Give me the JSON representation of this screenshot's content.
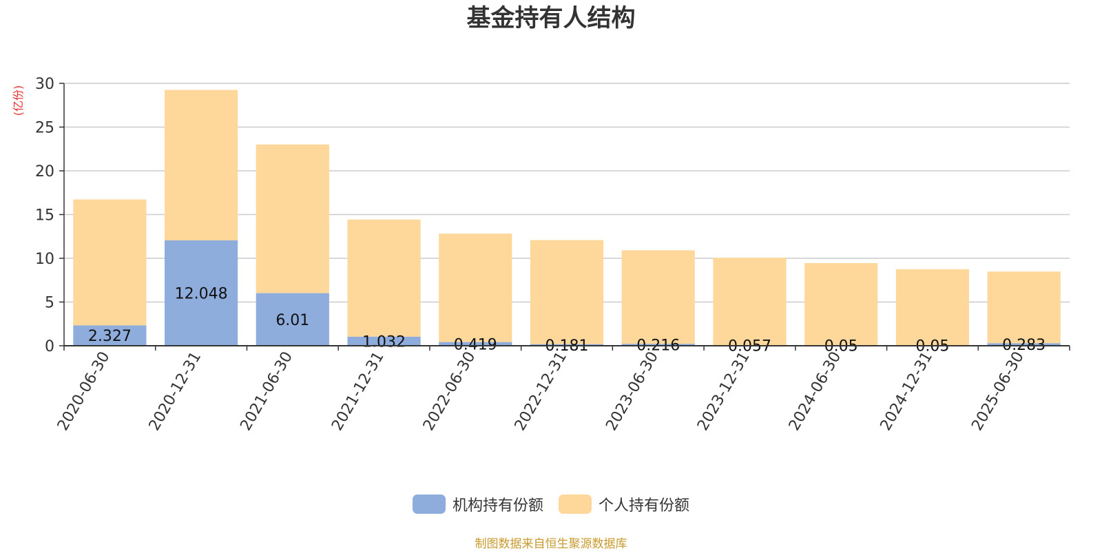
{
  "chart_data": {
    "type": "bar",
    "stacked": true,
    "title": "基金持有人结构",
    "ylabel": "(亿份)",
    "xlabel": "",
    "ylim": [
      0,
      30
    ],
    "yticks": [
      0,
      5,
      10,
      15,
      20,
      25,
      30
    ],
    "grid": true,
    "legend_position": "bottom",
    "categories": [
      "2020-06-30",
      "2020-12-31",
      "2021-06-30",
      "2021-12-31",
      "2022-06-30",
      "2022-12-31",
      "2023-06-30",
      "2023-12-31",
      "2024-06-30",
      "2024-12-31",
      "2025-06-30"
    ],
    "series": [
      {
        "name": "机构持有份额",
        "color": "#8eaddc",
        "values": [
          2.327,
          12.048,
          6.01,
          1.032,
          0.419,
          0.181,
          0.216,
          0.057,
          0.05,
          0.05,
          0.283
        ],
        "labels": [
          "2.327",
          "12.048",
          "6.01",
          "1.032",
          "0.419",
          "0.181",
          "0.216",
          "0.057",
          "0.05",
          "0.05",
          "0.283"
        ]
      },
      {
        "name": "个人持有份额",
        "color": "#fed89b",
        "values": [
          14.4,
          17.2,
          17.0,
          13.4,
          12.4,
          11.9,
          10.7,
          10.0,
          9.4,
          8.7,
          8.2
        ]
      }
    ]
  },
  "source_note": "制图数据来自恒生聚源数据库"
}
